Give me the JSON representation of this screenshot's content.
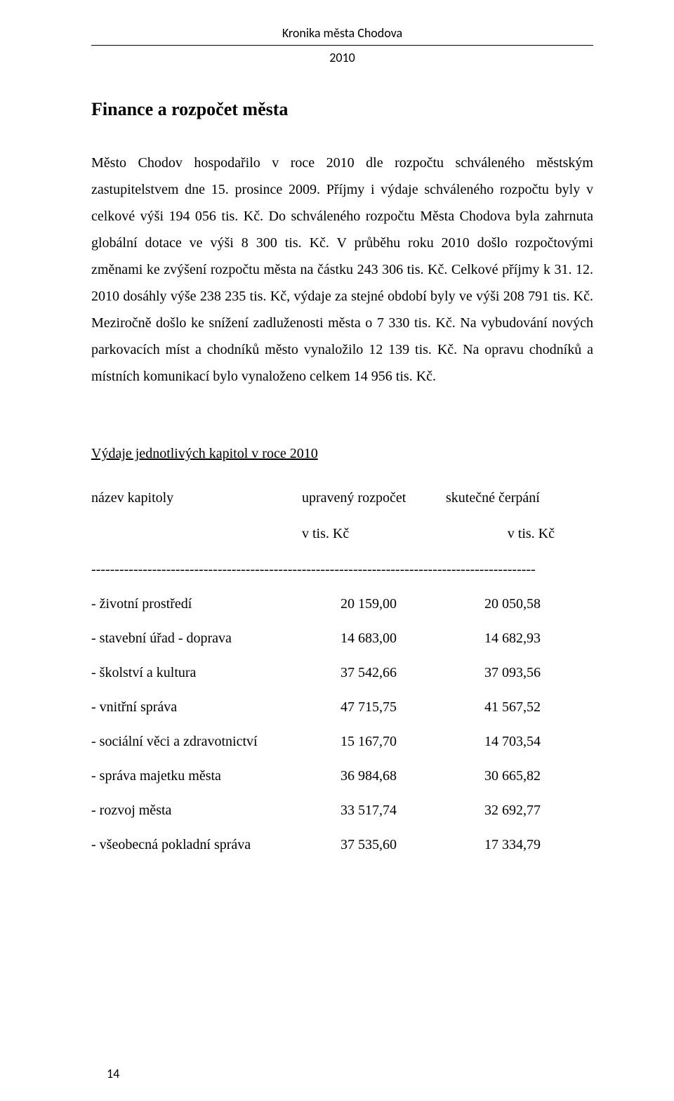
{
  "header": {
    "title": "Kronika města Chodova",
    "year": "2010"
  },
  "section": {
    "heading": "Finance a rozpočet města"
  },
  "body": {
    "paragraph": "Město Chodov hospodařilo v roce 2010 dle rozpočtu schváleného městským zastupitelstvem dne 15. prosince 2009. Příjmy i výdaje schváleného rozpočtu byly v celkové výši 194 056 tis. Kč. Do schváleného rozpočtu Města Chodova byla zahrnuta globální dotace ve výši 8 300 tis. Kč. V průběhu roku 2010 došlo rozpočtovými změnami ke zvýšení rozpočtu města na částku 243 306 tis. Kč. Celkové příjmy k 31. 12. 2010 dosáhly výše 238 235 tis. Kč, výdaje za stejné období byly ve výši 208 791 tis. Kč. Meziročně došlo ke snížení zadluženosti města o 7 330 tis. Kč. Na vybudování nových parkovacích míst a chodníků město vynaložilo 12 139 tis. Kč. Na opravu chodníků a místních komunikací bylo vynaloženo celkem 14 956 tis. Kč."
  },
  "subsection": {
    "title": "Výdaje jednotlivých kapitol v roce 2010"
  },
  "table": {
    "headers": {
      "c1": "název kapitoly",
      "c2": "upravený rozpočet",
      "c3": "skutečné čerpání"
    },
    "units": {
      "c2": "v tis. Kč",
      "c3": "v tis. Kč"
    },
    "separator": "-----------------------------------------------------------------------------------------------",
    "rows": [
      {
        "label": "- životní prostředí",
        "budget": "20 159,00",
        "actual": "20 050,58"
      },
      {
        "label": "- stavební úřad - doprava",
        "budget": "14 683,00",
        "actual": "14 682,93"
      },
      {
        "label": "- školství a kultura",
        "budget": "37 542,66",
        "actual": "37 093,56"
      },
      {
        "label": "- vnitřní správa",
        "budget": "47 715,75",
        "actual": "41 567,52"
      },
      {
        "label": "- sociální věci a zdravotnictví",
        "budget": "15 167,70",
        "actual": "14 703,54"
      },
      {
        "label": "- správa majetku města",
        "budget": "36 984,68",
        "actual": "30 665,82"
      },
      {
        "label": "- rozvoj města",
        "budget": "33 517,74",
        "actual": "32 692,77"
      },
      {
        "label": "- všeobecná pokladní správa",
        "budget": "37 535,60",
        "actual": "17 334,79"
      }
    ]
  },
  "footer": {
    "page": "14"
  }
}
